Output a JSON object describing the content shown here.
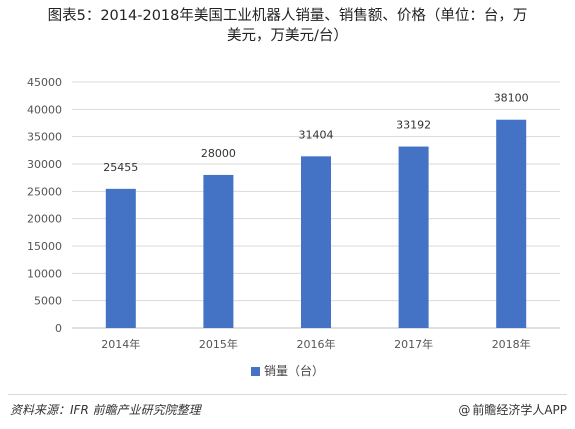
{
  "title_line1": "图表5：2014-2018年美国工业机器人销量、销售额、价格（单位：台，万",
  "title_line2": "美元，万美元/台）",
  "source": "资料来源：IFR 前瞻产业研究院整理",
  "brand": "前瞻经济学人APP",
  "brand_icon": "at-icon",
  "colors": {
    "bar": "#4472C4",
    "grid": "#d9d9d9"
  },
  "chart_data": {
    "type": "bar",
    "categories": [
      "2014年",
      "2015年",
      "2016年",
      "2017年",
      "2018年"
    ],
    "series": [
      {
        "name": "销量（台）",
        "values": [
          25455,
          28000,
          31404,
          33192,
          38100
        ]
      }
    ],
    "yticks": [
      0,
      5000,
      10000,
      15000,
      20000,
      25000,
      30000,
      35000,
      40000,
      45000
    ],
    "ylim": [
      0,
      45000
    ],
    "grid": true,
    "legend": "bottom"
  }
}
